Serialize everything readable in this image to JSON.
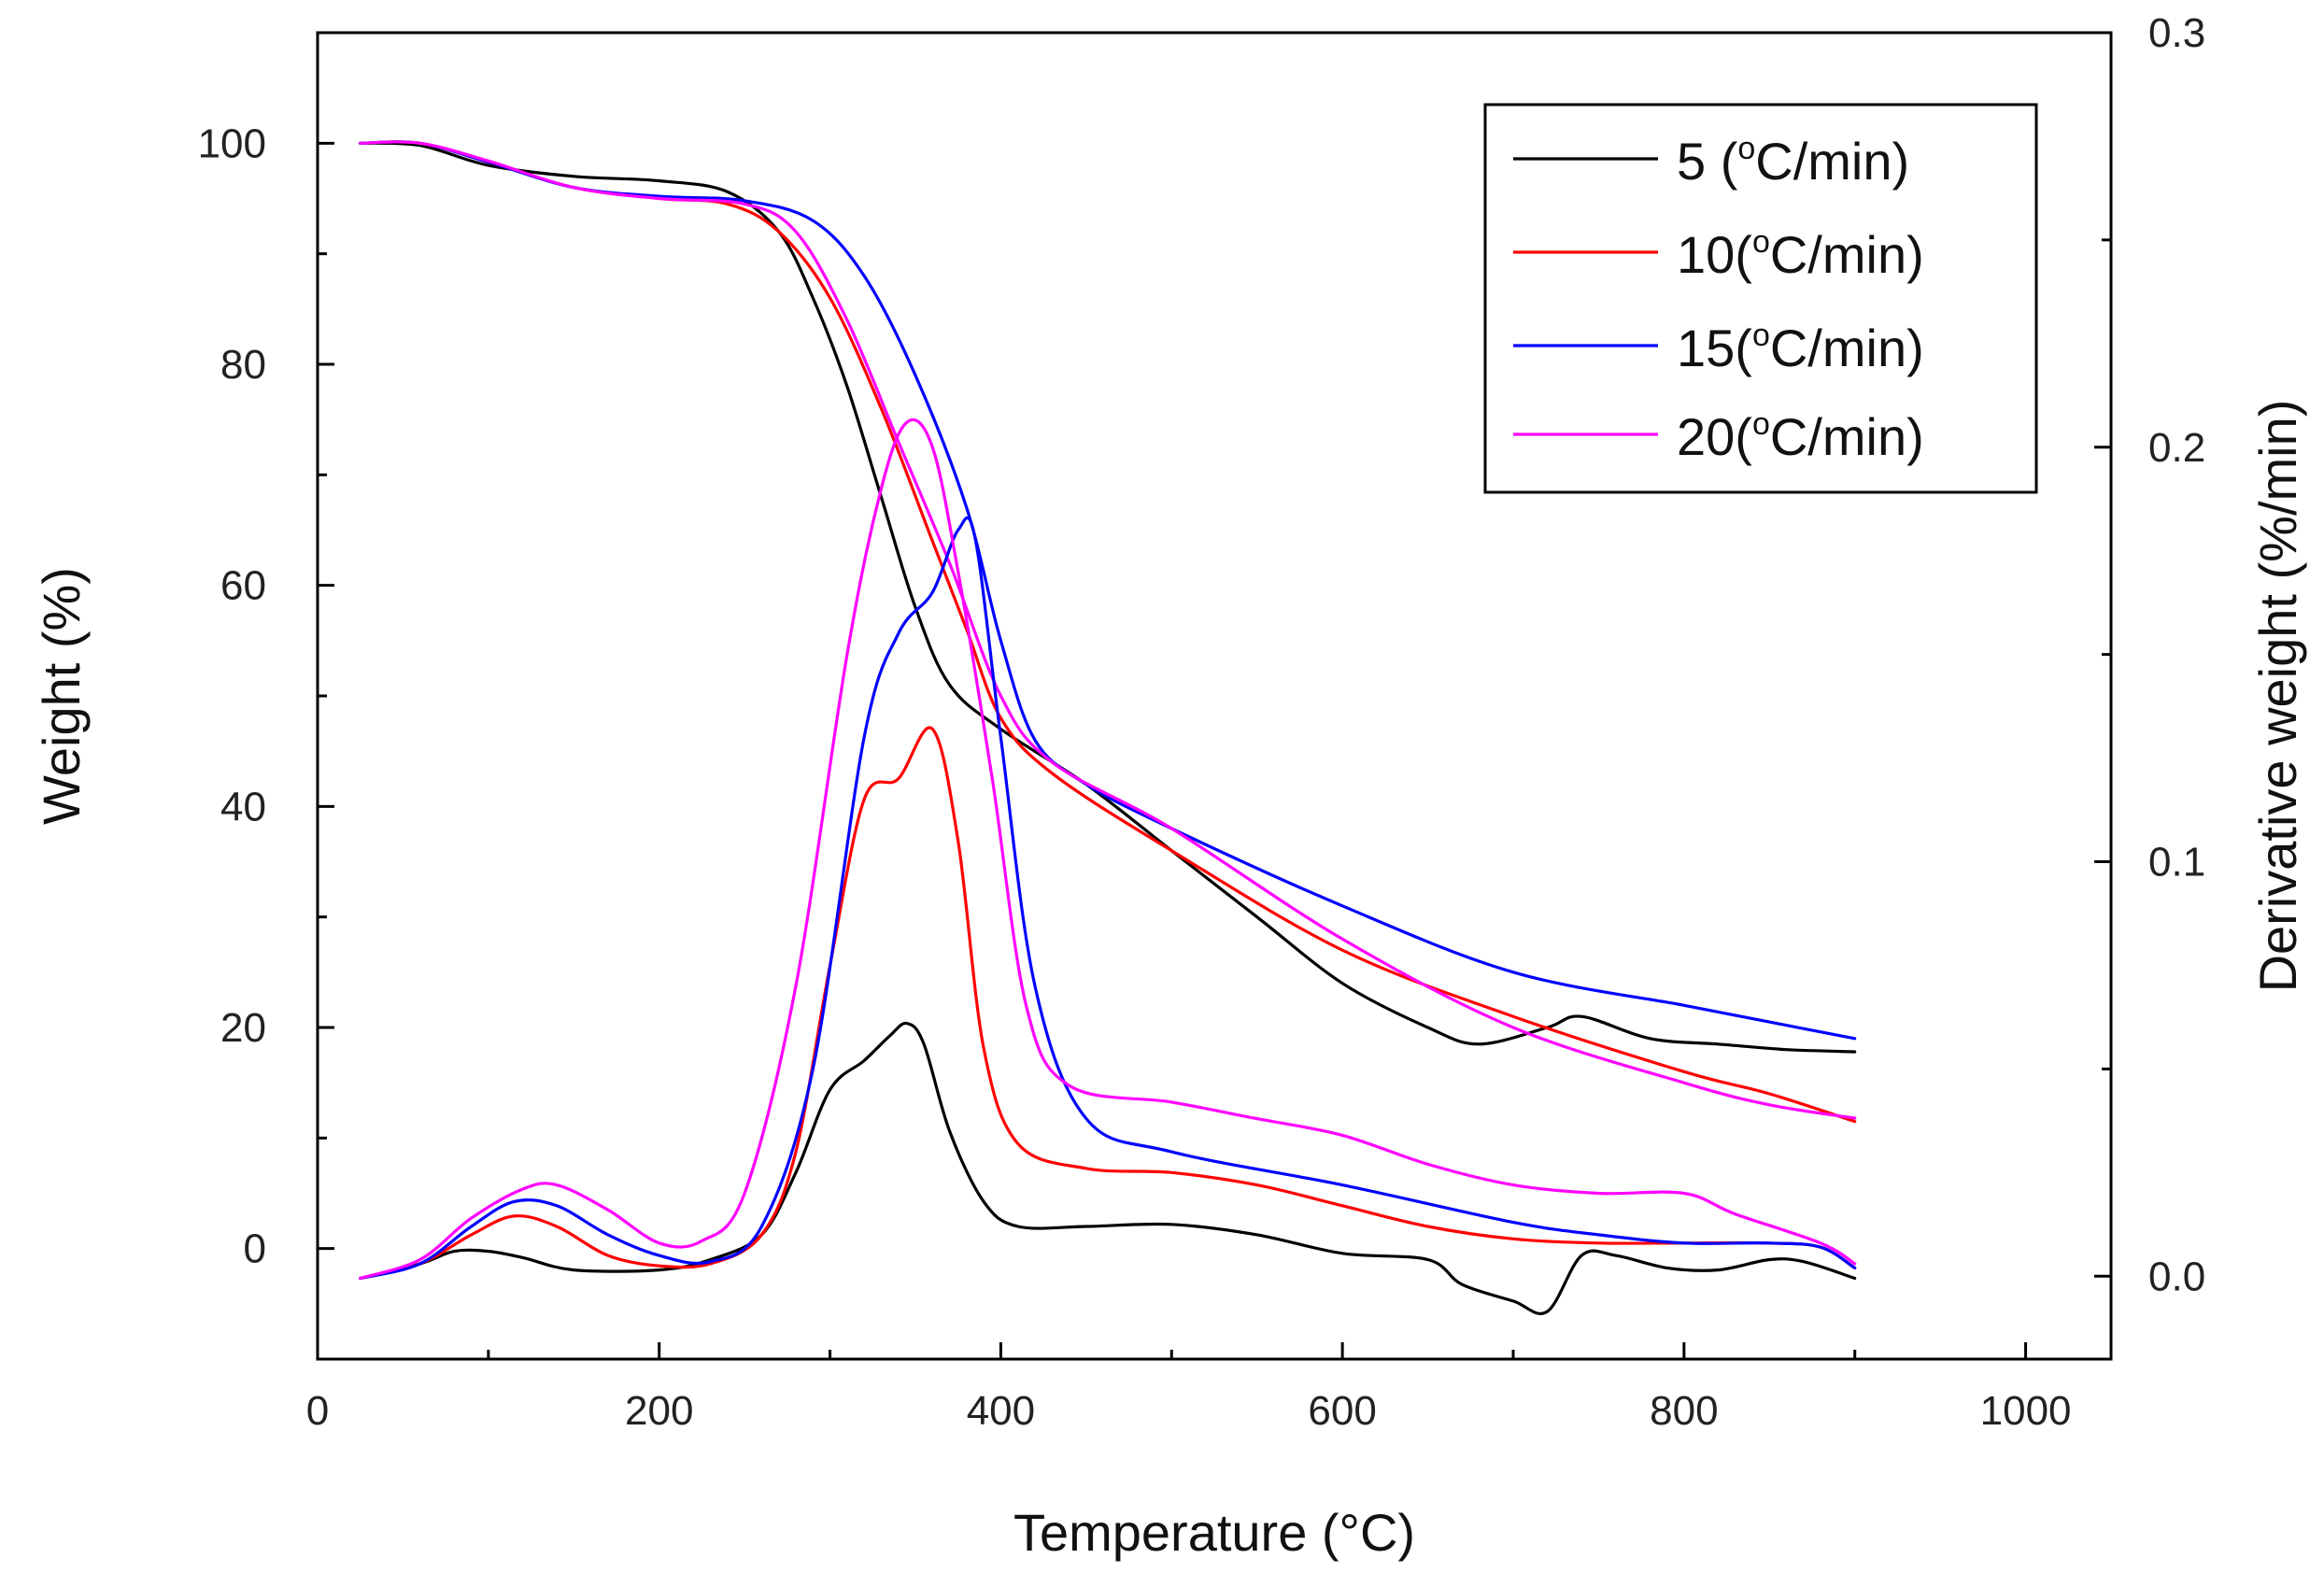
{
  "chart_data": {
    "type": "line",
    "title": "",
    "xlabel": "Temperature (°C)",
    "ylabel_left": "Weight (%)",
    "ylabel_right": "Derivative weight (%/min)",
    "xlim": [
      0,
      1050
    ],
    "ylim_left": [
      -10,
      110
    ],
    "ylim_right": [
      -0.02,
      0.3
    ],
    "x_ticks": [
      0,
      200,
      400,
      600,
      800,
      1000
    ],
    "x_tick_labels": [
      "0",
      "200",
      "400",
      "600",
      "800",
      "1000"
    ],
    "y_left_ticks": [
      0,
      20,
      40,
      60,
      80,
      100
    ],
    "y_left_tick_labels": [
      "0",
      "20",
      "40",
      "60",
      "80",
      "100"
    ],
    "y_right_ticks": [
      0.0,
      0.1,
      0.2,
      0.3
    ],
    "y_right_tick_labels": [
      "0.0",
      "0.1",
      "0.2",
      "0.3"
    ],
    "legend_position": "top-right",
    "legend": [
      {
        "rate": "5",
        "prefix": "5 (",
        "suffix": "C/min)",
        "sup": "o",
        "color": "#000000"
      },
      {
        "rate": "10",
        "prefix": "10(",
        "suffix": "C/min)",
        "sup": "o",
        "color": "#ff0000"
      },
      {
        "rate": "15",
        "prefix": "15(",
        "suffix": "C/min)",
        "sup": "o",
        "color": "#0000ff"
      },
      {
        "rate": "20",
        "prefix": "20(",
        "suffix": "C/min)",
        "sup": "o",
        "color": "#ff00ff"
      }
    ],
    "series": [
      {
        "name": "TG 5 °C/min",
        "kind": "weight",
        "axis": "left",
        "color": "#000000",
        "points": [
          [
            25,
            100
          ],
          [
            60,
            99.8
          ],
          [
            100,
            98
          ],
          [
            150,
            97
          ],
          [
            200,
            96.6
          ],
          [
            240,
            95.6
          ],
          [
            270,
            92
          ],
          [
            290,
            86
          ],
          [
            310,
            78
          ],
          [
            330,
            68
          ],
          [
            350,
            58
          ],
          [
            370,
            51
          ],
          [
            400,
            47
          ],
          [
            450,
            42
          ],
          [
            500,
            36
          ],
          [
            550,
            30
          ],
          [
            600,
            24
          ],
          [
            650,
            20
          ],
          [
            680,
            18.5
          ],
          [
            720,
            20
          ],
          [
            740,
            21
          ],
          [
            780,
            19
          ],
          [
            820,
            18.5
          ],
          [
            860,
            18
          ],
          [
            900,
            17.8
          ]
        ]
      },
      {
        "name": "TG 10 °C/min",
        "kind": "weight",
        "axis": "left",
        "color": "#ff0000",
        "points": [
          [
            25,
            100
          ],
          [
            60,
            100
          ],
          [
            100,
            98.3
          ],
          [
            150,
            96
          ],
          [
            200,
            95
          ],
          [
            240,
            94.5
          ],
          [
            270,
            92
          ],
          [
            300,
            86
          ],
          [
            330,
            76
          ],
          [
            360,
            64
          ],
          [
            380,
            56
          ],
          [
            400,
            48
          ],
          [
            430,
            43
          ],
          [
            500,
            36
          ],
          [
            600,
            27
          ],
          [
            700,
            21
          ],
          [
            800,
            16
          ],
          [
            850,
            14
          ],
          [
            900,
            11.5
          ]
        ]
      },
      {
        "name": "TG 15 °C/min",
        "kind": "weight",
        "axis": "left",
        "color": "#0000ff",
        "points": [
          [
            25,
            100
          ],
          [
            60,
            100
          ],
          [
            100,
            98.3
          ],
          [
            150,
            96
          ],
          [
            200,
            95.2
          ],
          [
            250,
            94.8
          ],
          [
            290,
            93
          ],
          [
            320,
            88
          ],
          [
            350,
            79
          ],
          [
            380,
            67
          ],
          [
            400,
            55
          ],
          [
            420,
            46
          ],
          [
            450,
            42
          ],
          [
            500,
            38
          ],
          [
            600,
            31
          ],
          [
            700,
            25
          ],
          [
            800,
            22
          ],
          [
            850,
            20.5
          ],
          [
            900,
            19
          ]
        ]
      },
      {
        "name": "TG 20 °C/min",
        "kind": "weight",
        "axis": "left",
        "color": "#ff00ff",
        "points": [
          [
            25,
            100
          ],
          [
            60,
            100
          ],
          [
            100,
            98.4
          ],
          [
            150,
            96
          ],
          [
            200,
            95
          ],
          [
            250,
            94.5
          ],
          [
            280,
            92
          ],
          [
            310,
            84
          ],
          [
            340,
            73
          ],
          [
            370,
            62
          ],
          [
            400,
            50
          ],
          [
            430,
            44
          ],
          [
            500,
            38
          ],
          [
            600,
            28
          ],
          [
            700,
            20
          ],
          [
            800,
            15
          ],
          [
            850,
            13
          ],
          [
            900,
            11.8
          ]
        ]
      },
      {
        "name": "DTG 5 °C/min",
        "kind": "derivative",
        "axis": "right",
        "color": "#000000",
        "points": [
          [
            25,
            -0.0005
          ],
          [
            60,
            0.003
          ],
          [
            80,
            0.006
          ],
          [
            100,
            0.006
          ],
          [
            120,
            0.0045
          ],
          [
            150,
            0.0015
          ],
          [
            200,
            0.0015
          ],
          [
            230,
            0.004
          ],
          [
            260,
            0.01
          ],
          [
            280,
            0.025
          ],
          [
            300,
            0.045
          ],
          [
            320,
            0.052
          ],
          [
            335,
            0.058
          ],
          [
            345,
            0.061
          ],
          [
            355,
            0.056
          ],
          [
            370,
            0.035
          ],
          [
            390,
            0.018
          ],
          [
            410,
            0.012
          ],
          [
            450,
            0.012
          ],
          [
            500,
            0.0125
          ],
          [
            550,
            0.01
          ],
          [
            600,
            0.0055
          ],
          [
            650,
            0.004
          ],
          [
            670,
            -0.002
          ],
          [
            700,
            -0.006
          ],
          [
            720,
            -0.0085
          ],
          [
            740,
            0.005
          ],
          [
            760,
            0.005
          ],
          [
            790,
            0.002
          ],
          [
            820,
            0.0015
          ],
          [
            850,
            0.004
          ],
          [
            870,
            0.0035
          ],
          [
            900,
            -0.0005
          ]
        ]
      },
      {
        "name": "DTG 10 °C/min",
        "kind": "derivative",
        "axis": "right",
        "color": "#ff0000",
        "points": [
          [
            25,
            -0.0005
          ],
          [
            60,
            0.003
          ],
          [
            90,
            0.01
          ],
          [
            115,
            0.0145
          ],
          [
            140,
            0.012
          ],
          [
            170,
            0.005
          ],
          [
            200,
            0.0025
          ],
          [
            230,
            0.003
          ],
          [
            260,
            0.01
          ],
          [
            280,
            0.03
          ],
          [
            300,
            0.075
          ],
          [
            320,
            0.115
          ],
          [
            340,
            0.12
          ],
          [
            360,
            0.132
          ],
          [
            375,
            0.105
          ],
          [
            390,
            0.055
          ],
          [
            410,
            0.032
          ],
          [
            450,
            0.026
          ],
          [
            500,
            0.025
          ],
          [
            550,
            0.022
          ],
          [
            600,
            0.017
          ],
          [
            650,
            0.012
          ],
          [
            700,
            0.009
          ],
          [
            750,
            0.008
          ],
          [
            800,
            0.008
          ],
          [
            850,
            0.008
          ],
          [
            880,
            0.007
          ],
          [
            900,
            0.002
          ]
        ]
      },
      {
        "name": "DTG 15 °C/min",
        "kind": "derivative",
        "axis": "right",
        "color": "#0000ff",
        "points": [
          [
            25,
            -0.0005
          ],
          [
            60,
            0.003
          ],
          [
            90,
            0.012
          ],
          [
            115,
            0.018
          ],
          [
            140,
            0.017
          ],
          [
            170,
            0.01
          ],
          [
            200,
            0.005
          ],
          [
            230,
            0.0035
          ],
          [
            260,
            0.012
          ],
          [
            290,
            0.05
          ],
          [
            320,
            0.13
          ],
          [
            340,
            0.155
          ],
          [
            360,
            0.165
          ],
          [
            375,
            0.18
          ],
          [
            385,
            0.178
          ],
          [
            400,
            0.13
          ],
          [
            420,
            0.07
          ],
          [
            450,
            0.038
          ],
          [
            500,
            0.03
          ],
          [
            600,
            0.022
          ],
          [
            700,
            0.013
          ],
          [
            750,
            0.01
          ],
          [
            800,
            0.008
          ],
          [
            850,
            0.008
          ],
          [
            880,
            0.007
          ],
          [
            900,
            0.002
          ]
        ]
      },
      {
        "name": "DTG 20 °C/min",
        "kind": "derivative",
        "axis": "right",
        "color": "#ff00ff",
        "points": [
          [
            25,
            -0.0005
          ],
          [
            60,
            0.004
          ],
          [
            90,
            0.014
          ],
          [
            120,
            0.021
          ],
          [
            140,
            0.022
          ],
          [
            170,
            0.016
          ],
          [
            200,
            0.008
          ],
          [
            225,
            0.0085
          ],
          [
            250,
            0.02
          ],
          [
            280,
            0.07
          ],
          [
            310,
            0.15
          ],
          [
            330,
            0.19
          ],
          [
            345,
            0.206
          ],
          [
            360,
            0.2
          ],
          [
            375,
            0.17
          ],
          [
            395,
            0.12
          ],
          [
            415,
            0.065
          ],
          [
            440,
            0.046
          ],
          [
            500,
            0.042
          ],
          [
            550,
            0.038
          ],
          [
            600,
            0.034
          ],
          [
            650,
            0.027
          ],
          [
            700,
            0.022
          ],
          [
            750,
            0.02
          ],
          [
            800,
            0.02
          ],
          [
            830,
            0.015
          ],
          [
            880,
            0.008
          ],
          [
            900,
            0.003
          ]
        ]
      }
    ]
  }
}
